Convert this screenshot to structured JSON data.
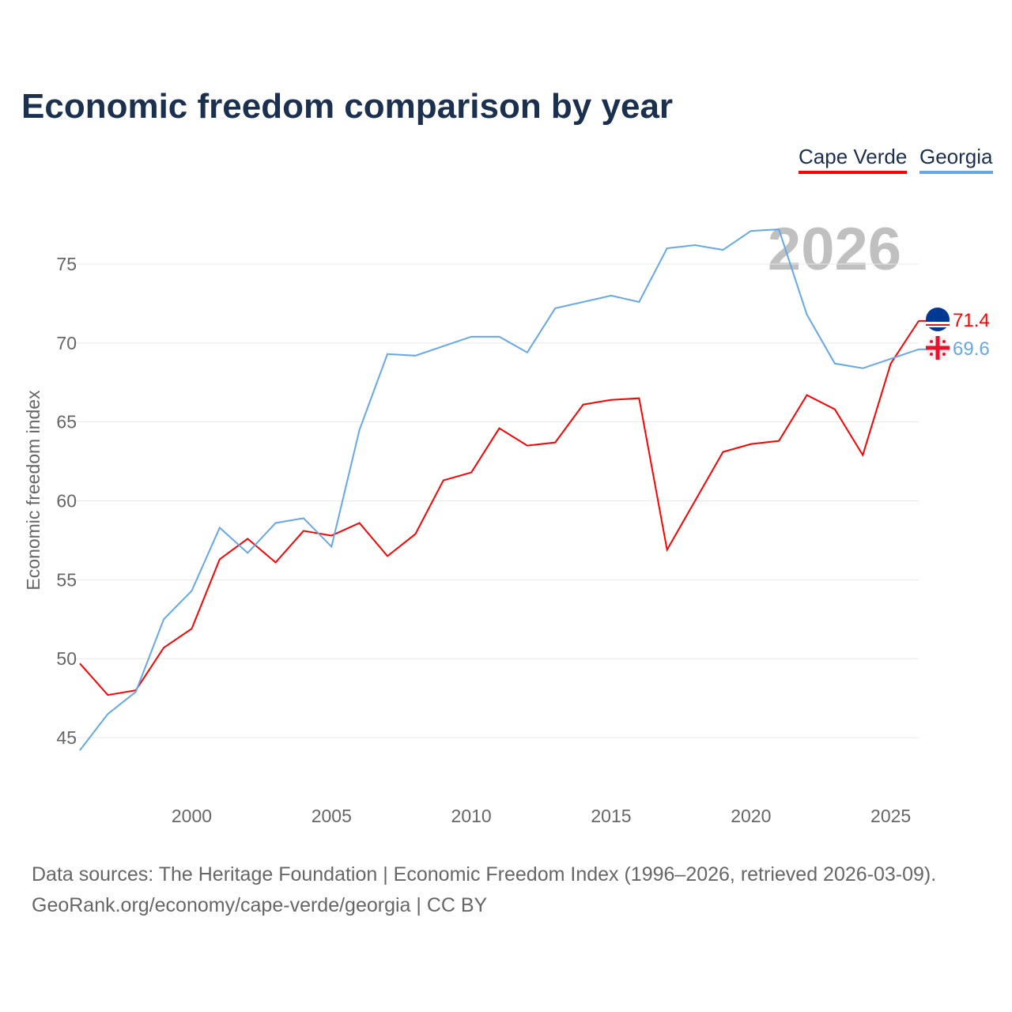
{
  "chart_data": {
    "type": "line",
    "title": "Economic freedom comparison by year",
    "xlabel": "",
    "ylabel": "Economic freedom index",
    "xlim": [
      1996,
      2026
    ],
    "ylim": [
      41.2,
      78.5
    ],
    "yticks": [
      45,
      50,
      55,
      60,
      65,
      70,
      75
    ],
    "xticks": [
      2000,
      2005,
      2010,
      2015,
      2020,
      2025
    ],
    "grid": true,
    "legend_position": "top-right",
    "watermark_year": "2026",
    "x": [
      1996,
      1997,
      1998,
      1999,
      2000,
      2001,
      2002,
      2003,
      2004,
      2005,
      2006,
      2007,
      2008,
      2009,
      2010,
      2011,
      2012,
      2013,
      2014,
      2015,
      2016,
      2017,
      2018,
      2019,
      2020,
      2021,
      2022,
      2023,
      2024,
      2025,
      2026
    ],
    "series": [
      {
        "name": "Cape Verde",
        "color": "#ff0000",
        "end_label": "71.4",
        "values": [
          49.7,
          47.7,
          48.0,
          50.7,
          51.9,
          56.3,
          57.6,
          56.1,
          58.1,
          57.8,
          58.6,
          56.5,
          57.9,
          61.3,
          61.8,
          64.6,
          63.5,
          63.7,
          66.1,
          66.4,
          66.5,
          56.9,
          60.0,
          63.1,
          63.6,
          63.8,
          66.7,
          65.8,
          62.9,
          68.7,
          71.4
        ]
      },
      {
        "name": "Georgia",
        "color": "#64a8ea",
        "end_label": "69.6",
        "values": [
          44.2,
          46.5,
          47.9,
          52.5,
          54.3,
          58.3,
          56.7,
          58.6,
          58.9,
          57.1,
          64.5,
          69.3,
          69.2,
          69.8,
          70.4,
          70.4,
          69.4,
          72.2,
          72.6,
          73.0,
          72.6,
          76.0,
          76.2,
          75.9,
          77.1,
          77.2,
          71.8,
          68.7,
          68.4,
          69.0,
          69.6
        ]
      }
    ]
  },
  "source_line1": "Data sources: The Heritage Foundation | Economic Freedom Index (1996–2026, retrieved 2026-03-09).",
  "source_line2": "GeoRank.org/economy/cape-verde/georgia | CC BY"
}
